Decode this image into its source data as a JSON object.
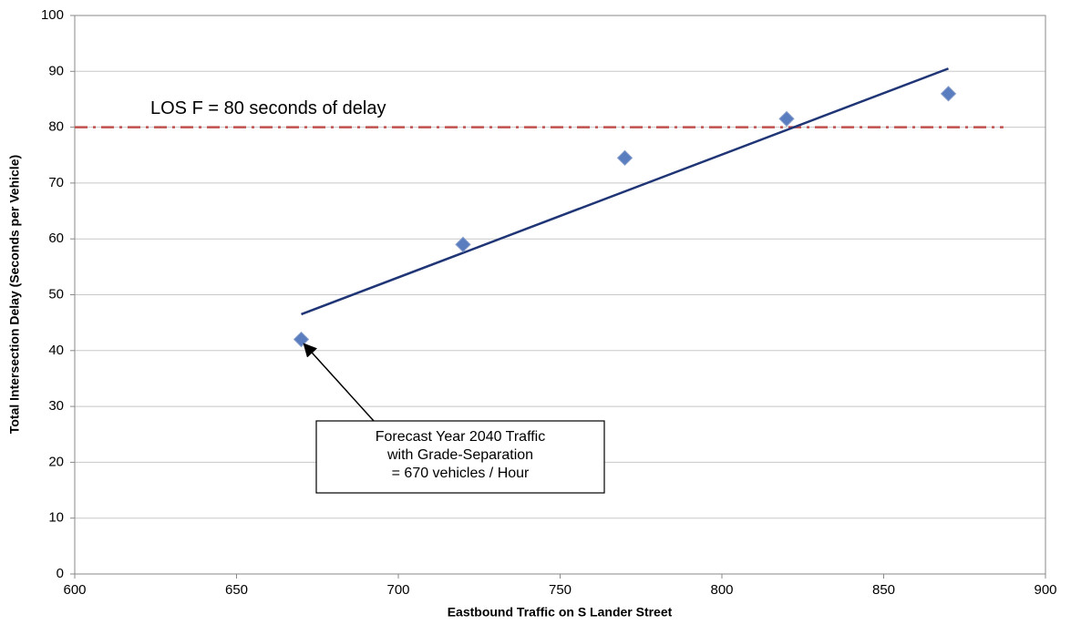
{
  "chart_data": {
    "type": "scatter",
    "x_label": "Eastbound Traffic on S Lander Street",
    "y_label": "Total Intersection Delay (Seconds per Vehicle)",
    "x": [
      670,
      720,
      770,
      820,
      870
    ],
    "series": [
      {
        "color": "#5a7dbf",
        "values": [
          42,
          59,
          74.5,
          81.5,
          86
        ]
      }
    ],
    "trendline": {
      "x": [
        670,
        870
      ],
      "values": [
        46.5,
        90.5
      ],
      "color": "#1f3575"
    },
    "threshold": {
      "value": 80,
      "x": [
        600,
        887
      ],
      "label": "LOS F = 80 seconds of delay",
      "color": "#c0504d"
    },
    "annotation": {
      "lines": [
        "Forecast Year 2040 Traffic",
        "with Grade-Separation",
        "= 670 vehicles / Hour"
      ],
      "target": 0
    },
    "xlim": [
      600,
      900
    ],
    "ylim": [
      0,
      100
    ],
    "xticks": [
      600,
      650,
      700,
      750,
      800,
      850,
      900
    ],
    "yticks": [
      0,
      10,
      20,
      30,
      40,
      50,
      60,
      70,
      80,
      90,
      100
    ],
    "grid": true
  }
}
